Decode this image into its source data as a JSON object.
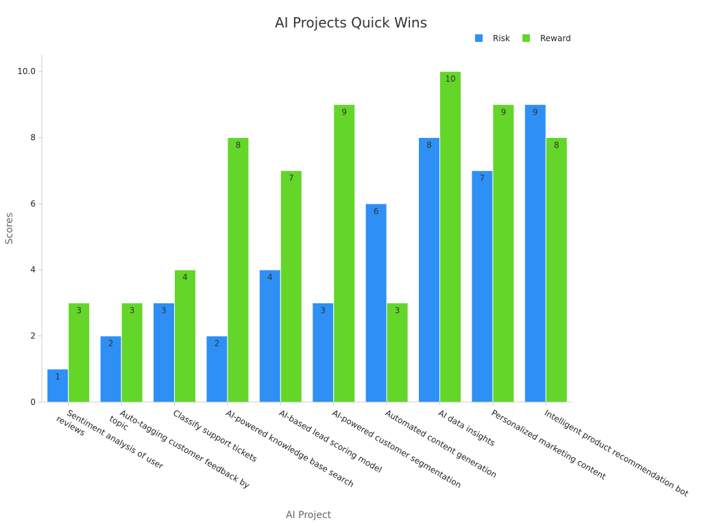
{
  "chart_data": {
    "type": "bar",
    "title": "AI Projects Quick Wins",
    "xlabel": "AI Project",
    "ylabel": "Scores",
    "ylim": [
      0,
      10.5
    ],
    "yticks": [
      0,
      2,
      4,
      6,
      8,
      10
    ],
    "yticks_labels": [
      "0",
      "2",
      "4",
      "6",
      "8",
      "10.0"
    ],
    "categories": [
      [
        "Sentiment analysis of user",
        "reviews"
      ],
      [
        "Auto-tagging customer feedback by",
        "topic"
      ],
      [
        "Classify support tickets"
      ],
      [
        "AI-powered knowledge base search"
      ],
      [
        "AI-based lead scoring model"
      ],
      [
        "AI-powered customer segmentation"
      ],
      [
        "Automated content generation"
      ],
      [
        "AI data insights"
      ],
      [
        "Personalized marketing content"
      ],
      [
        "Intelligent product recommendation bot"
      ]
    ],
    "series": [
      {
        "name": "Risk",
        "color": "#2e90f5",
        "values": [
          1,
          2,
          3,
          2,
          4,
          3,
          6,
          8,
          7,
          9
        ]
      },
      {
        "name": "Reward",
        "color": "#63d629",
        "values": [
          3,
          3,
          4,
          8,
          7,
          9,
          3,
          10,
          9,
          8
        ]
      }
    ],
    "legend_position": "top-right",
    "grid": false
  }
}
